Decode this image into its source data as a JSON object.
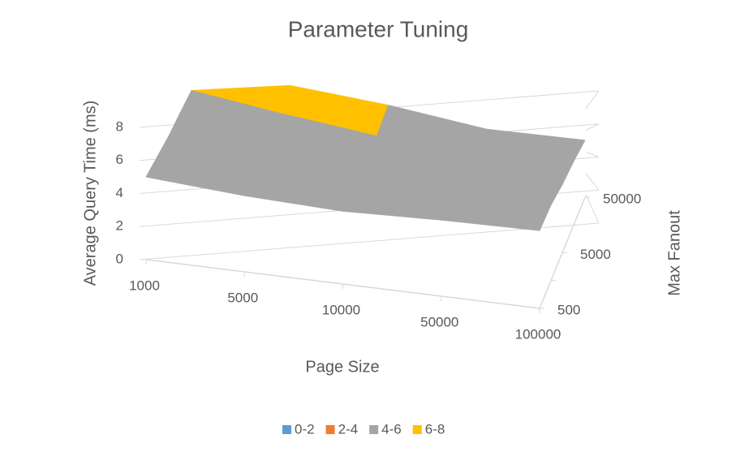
{
  "chart_data": {
    "type": "surface",
    "title": "Parameter Tuning",
    "x_label": "Page Size",
    "y_label": "Max Fanout",
    "z_label": "Average Query Time (ms)",
    "x": [
      "1000",
      "5000",
      "10000",
      "50000",
      "100000"
    ],
    "y": [
      "500",
      null,
      "5000",
      null,
      "50000"
    ],
    "values": [
      [
        5,
        4.6,
        4.4,
        4.6,
        4.7
      ],
      [
        5,
        5,
        4.8,
        4.8,
        5
      ],
      [
        5,
        5.5,
        5,
        5,
        5
      ],
      [
        5.2,
        6.2,
        5.3,
        5,
        5.2
      ],
      [
        5.4,
        7,
        6.3,
        5.2,
        5.3
      ]
    ],
    "zlim": [
      0,
      8
    ],
    "zticks": [
      0,
      2,
      4,
      6,
      8
    ],
    "series": [
      {
        "name": "0-2",
        "color": "#5b9bd5"
      },
      {
        "name": "2-4",
        "color": "#ed7d31"
      },
      {
        "name": "4-6",
        "color": "#a5a5a5"
      },
      {
        "name": "6-8",
        "color": "#ffc000"
      }
    ],
    "grid": true
  }
}
